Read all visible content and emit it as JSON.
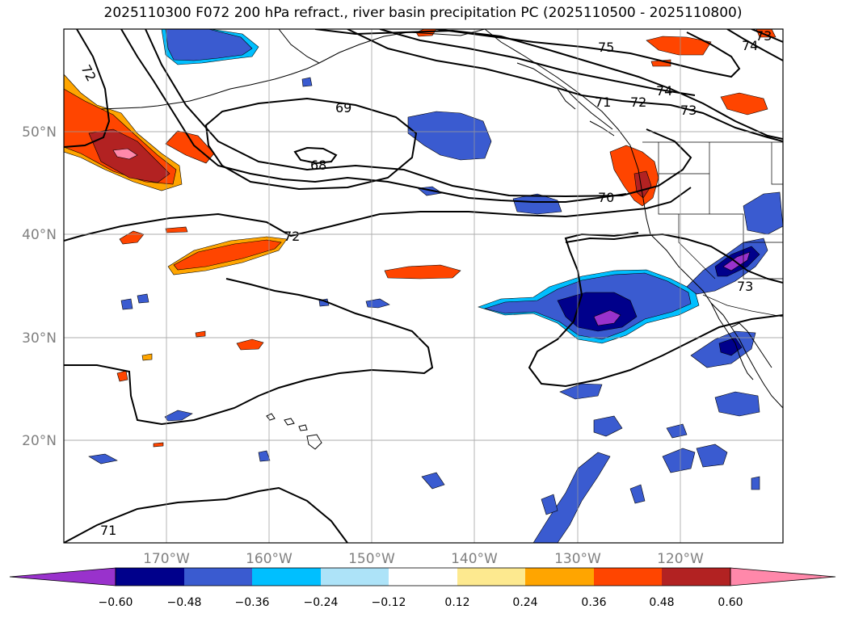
{
  "title": "2025110300 F072 200 hPa refract., river basin precipitation PC (2025110500 - 2025110800)",
  "map": {
    "lon_range": [
      -180,
      -110
    ],
    "lat_range": [
      10,
      60
    ],
    "lon_ticks": [
      "170°W",
      "160°W",
      "150°W",
      "140°W",
      "130°W",
      "120°W"
    ],
    "lat_ticks": [
      "50°N",
      "40°N",
      "30°N",
      "20°N"
    ],
    "contour_labels": [
      "72",
      "69",
      "68",
      "72",
      "70",
      "75",
      "71",
      "72",
      "74",
      "73",
      "73",
      "71",
      "73",
      "74"
    ]
  },
  "colorbar": {
    "ticks": [
      "−0.60",
      "−0.48",
      "−0.36",
      "−0.24",
      "−0.12",
      "0.12",
      "0.24",
      "0.36",
      "0.48",
      "0.60"
    ],
    "colors": [
      "#9932cc",
      "#00008b",
      "#3a5bd0",
      "#00bfff",
      "#ade3f8",
      "#ffffff",
      "#fde98f",
      "#ffa500",
      "#ff4500",
      "#b22222",
      "#ff88aa"
    ]
  }
}
